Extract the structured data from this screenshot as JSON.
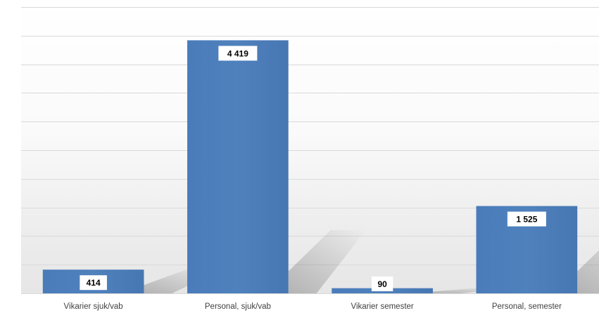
{
  "chart_data": {
    "type": "bar",
    "categories": [
      "Vikarier sjuk/vab",
      "Personal, sjuk/vab",
      "Vikarier semester",
      "Personal, semester"
    ],
    "values": [
      414,
      4419,
      90,
      1525
    ],
    "value_labels": [
      "414",
      "4 419",
      "90",
      "1 525"
    ],
    "ylim": [
      0,
      5000
    ],
    "grid": true,
    "legend": "none",
    "bar_color": "#4F81BD",
    "label_box_color": "#FFFFFF",
    "gridline_color": "#D9D9D9"
  }
}
